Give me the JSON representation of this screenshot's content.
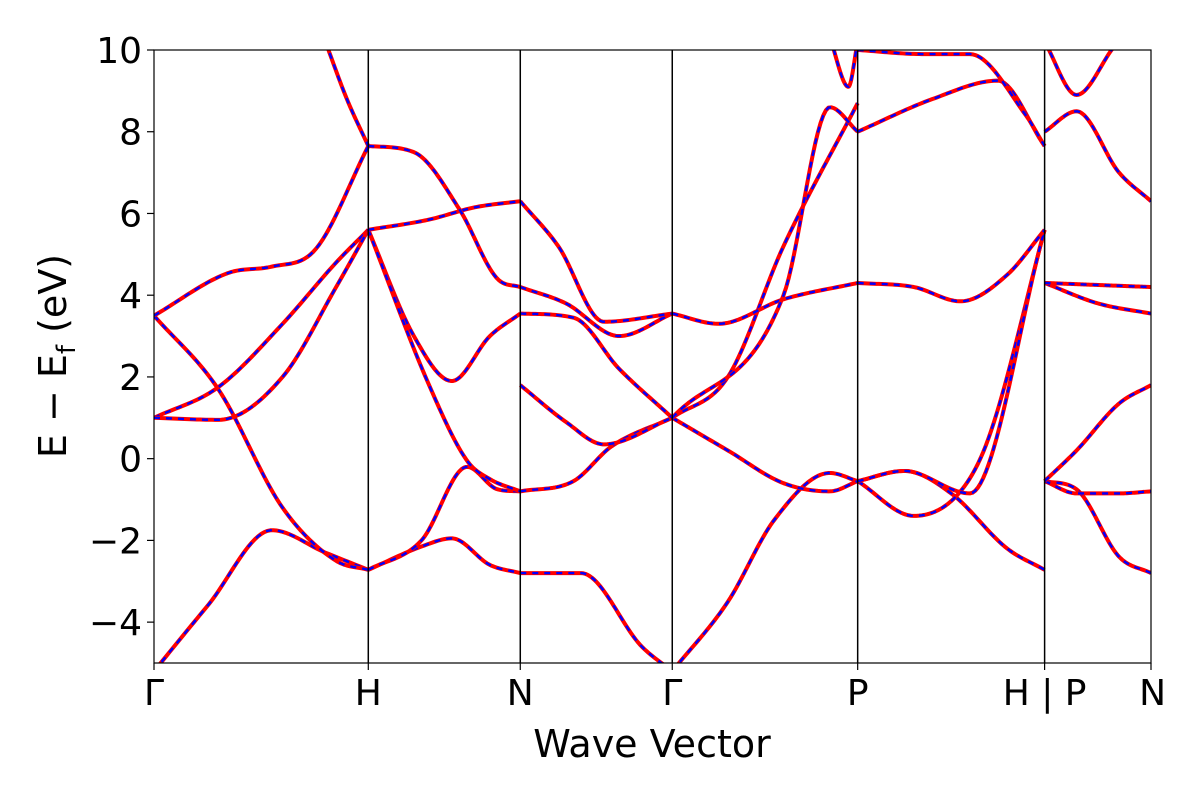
{
  "chart_data": {
    "type": "line",
    "xlabel": "Wave Vector",
    "ylabel": "E − E",
    "ylabel_sub": "f",
    "ylabel_unit": " (eV)",
    "ylim": [
      -5,
      10
    ],
    "yticks": [
      -4,
      -2,
      0,
      2,
      4,
      6,
      8,
      10
    ],
    "ytick_labels": [
      "−4",
      "−2",
      "0",
      "2",
      "4",
      "6",
      "8",
      "10"
    ],
    "xlim": [
      0,
      6.56
    ],
    "kpoints": [
      {
        "label": "Γ",
        "x": 0
      },
      {
        "label": "H",
        "x": 1.41
      },
      {
        "label": "N",
        "x": 2.41
      },
      {
        "label": "Γ",
        "x": 3.41
      },
      {
        "label": "P",
        "x": 4.63
      },
      {
        "label": "H | P",
        "x": 5.86
      },
      {
        "label": "N",
        "x": 6.56
      }
    ],
    "grid": false,
    "legend": "none",
    "style": {
      "line_color": "#ff0000",
      "overlay_color": "#0000ff",
      "line_style": "solid with dashed overlay"
    },
    "segments": [
      {
        "x0": 0,
        "x1": 1.41,
        "bands": [
          {
            "t": [
              0,
              0.25,
              0.55,
              0.8,
              1.0
            ],
            "e": [
              -5.2,
              -3.6,
              -1.75,
              -2.3,
              -2.72
            ]
          },
          {
            "t": [
              0,
              0.3,
              0.6,
              0.85,
              1.0
            ],
            "e": [
              3.5,
              1.7,
              -1.2,
              -2.5,
              -2.72
            ]
          },
          {
            "t": [
              0,
              0.35,
              0.55,
              0.75,
              1.0
            ],
            "e": [
              3.5,
              4.55,
              4.7,
              5.1,
              7.65
            ]
          },
          {
            "t": [
              0,
              0.3,
              0.6,
              0.85,
              1.0
            ],
            "e": [
              1.0,
              1.75,
              3.3,
              4.8,
              5.6
            ]
          },
          {
            "t": [
              0,
              0.3,
              0.6,
              0.85,
              1.0
            ],
            "e": [
              1.0,
              0.95,
              2.0,
              4.2,
              5.6
            ]
          },
          {
            "t": [
              0.8,
              0.9,
              1.0
            ],
            "e": [
              10.2,
              8.8,
              7.65
            ]
          }
        ]
      },
      {
        "x0": 1.41,
        "x1": 2.41,
        "bands": [
          {
            "t": [
              0,
              0.35,
              0.55,
              0.8,
              1.0
            ],
            "e": [
              -2.72,
              -2.15,
              -1.95,
              -2.6,
              -2.8
            ]
          },
          {
            "t": [
              0,
              0.35,
              0.65,
              0.85,
              1.0
            ],
            "e": [
              -2.72,
              -2.0,
              -0.2,
              -0.75,
              -0.8
            ]
          },
          {
            "t": [
              0,
              0.3,
              0.55,
              0.8,
              1.0
            ],
            "e": [
              5.6,
              3.0,
              1.9,
              3.0,
              3.55
            ]
          },
          {
            "t": [
              0,
              0.4,
              0.65,
              0.8,
              1.0
            ],
            "e": [
              5.6,
              1.8,
              -0.05,
              -0.5,
              -0.8
            ]
          },
          {
            "t": [
              0,
              0.4,
              0.7,
              1.0
            ],
            "e": [
              5.6,
              5.85,
              6.15,
              6.3
            ]
          },
          {
            "t": [
              0,
              0.3,
              0.6,
              0.85,
              1.0
            ],
            "e": [
              7.65,
              7.5,
              6.1,
              4.4,
              4.2
            ]
          }
        ]
      },
      {
        "x0": 2.41,
        "x1": 3.41,
        "bands": [
          {
            "t": [
              0,
              0.4,
              0.8,
              1.0
            ],
            "e": [
              -2.8,
              -2.8,
              -4.6,
              -5.2
            ]
          },
          {
            "t": [
              0,
              0.35,
              0.6,
              1.0
            ],
            "e": [
              -0.8,
              -0.55,
              0.3,
              1.0
            ]
          },
          {
            "t": [
              0,
              0.3,
              0.55,
              1.0
            ],
            "e": [
              1.8,
              0.9,
              0.35,
              1.0
            ]
          },
          {
            "t": [
              0,
              0.35,
              0.65,
              1.0
            ],
            "e": [
              3.55,
              3.45,
              2.2,
              1.0
            ]
          },
          {
            "t": [
              0,
              0.3,
              0.65,
              1.0
            ],
            "e": [
              4.2,
              3.8,
              3.0,
              3.55
            ]
          },
          {
            "t": [
              0,
              0.25,
              0.55,
              1.0
            ],
            "e": [
              6.3,
              5.2,
              3.35,
              3.55
            ]
          }
        ]
      },
      {
        "x0": 3.41,
        "x1": 4.63,
        "bands": [
          {
            "t": [
              0,
              0.3,
              0.55,
              0.85,
              1.0
            ],
            "e": [
              -5.2,
              -3.5,
              -1.5,
              -0.35,
              -0.55
            ]
          },
          {
            "t": [
              0,
              0.3,
              0.6,
              0.85,
              1.0
            ],
            "e": [
              1.0,
              0.2,
              -0.6,
              -0.8,
              -0.55
            ]
          },
          {
            "t": [
              0,
              0.3,
              0.6,
              1.0
            ],
            "e": [
              1.0,
              2.0,
              5.2,
              8.7
            ]
          },
          {
            "t": [
              0,
              0.25,
              0.6,
              1.0
            ],
            "e": [
              3.55,
              3.3,
              3.9,
              4.3
            ]
          },
          {
            "t": [
              0,
              0.6,
              0.85,
              1.0
            ],
            "e": [
              1.0,
              4.0,
              8.6,
              8.0
            ]
          },
          {
            "t": [
              0.85,
              0.95,
              1.0
            ],
            "e": [
              10.3,
              9.1,
              10.2
            ]
          }
        ]
      },
      {
        "x0": 4.63,
        "x1": 5.86,
        "bands": [
          {
            "t": [
              0,
              0.25,
              0.5,
              0.8,
              1.0
            ],
            "e": [
              -0.55,
              -0.3,
              -0.85,
              -2.2,
              -2.72
            ]
          },
          {
            "t": [
              0,
              0.3,
              0.55,
              0.7,
              1.0
            ],
            "e": [
              -0.55,
              -1.4,
              -0.8,
              0.5,
              5.6
            ]
          },
          {
            "t": [
              0,
              0.25,
              0.6,
              1.0
            ],
            "e": [
              -0.55,
              -0.3,
              -0.85,
              5.6
            ]
          },
          {
            "t": [
              0,
              0.3,
              0.55,
              0.8,
              1.0
            ],
            "e": [
              4.3,
              4.2,
              3.85,
              4.5,
              5.6
            ]
          },
          {
            "t": [
              0,
              0.4,
              0.75,
              1.0
            ],
            "e": [
              8.0,
              8.8,
              9.25,
              7.65
            ]
          },
          {
            "t": [
              0,
              0.35,
              0.6,
              0.9,
              1.0
            ],
            "e": [
              10.0,
              9.9,
              9.9,
              8.4,
              7.65
            ]
          }
        ]
      },
      {
        "x0": 5.86,
        "x1": 6.56,
        "bands": [
          {
            "t": [
              0,
              0.3,
              0.7,
              1.0
            ],
            "e": [
              -0.55,
              -0.75,
              -2.4,
              -2.8
            ]
          },
          {
            "t": [
              0,
              0.3,
              0.7,
              1.0
            ],
            "e": [
              -0.55,
              -0.85,
              -0.85,
              -0.8
            ]
          },
          {
            "t": [
              0,
              0.3,
              0.7,
              1.0
            ],
            "e": [
              -0.55,
              0.2,
              1.35,
              1.8
            ]
          },
          {
            "t": [
              0,
              0.5,
              1.0
            ],
            "e": [
              4.3,
              3.8,
              3.55
            ]
          },
          {
            "t": [
              0,
              0.5,
              1.0
            ],
            "e": [
              4.3,
              4.25,
              4.2
            ]
          },
          {
            "t": [
              0,
              0.3,
              0.7,
              1.0
            ],
            "e": [
              8.0,
              8.5,
              7.0,
              6.3
            ]
          },
          {
            "t": [
              0,
              0.3,
              0.7,
              1.0
            ],
            "e": [
              10.2,
              8.9,
              10.2,
              10.4
            ]
          }
        ]
      }
    ]
  }
}
